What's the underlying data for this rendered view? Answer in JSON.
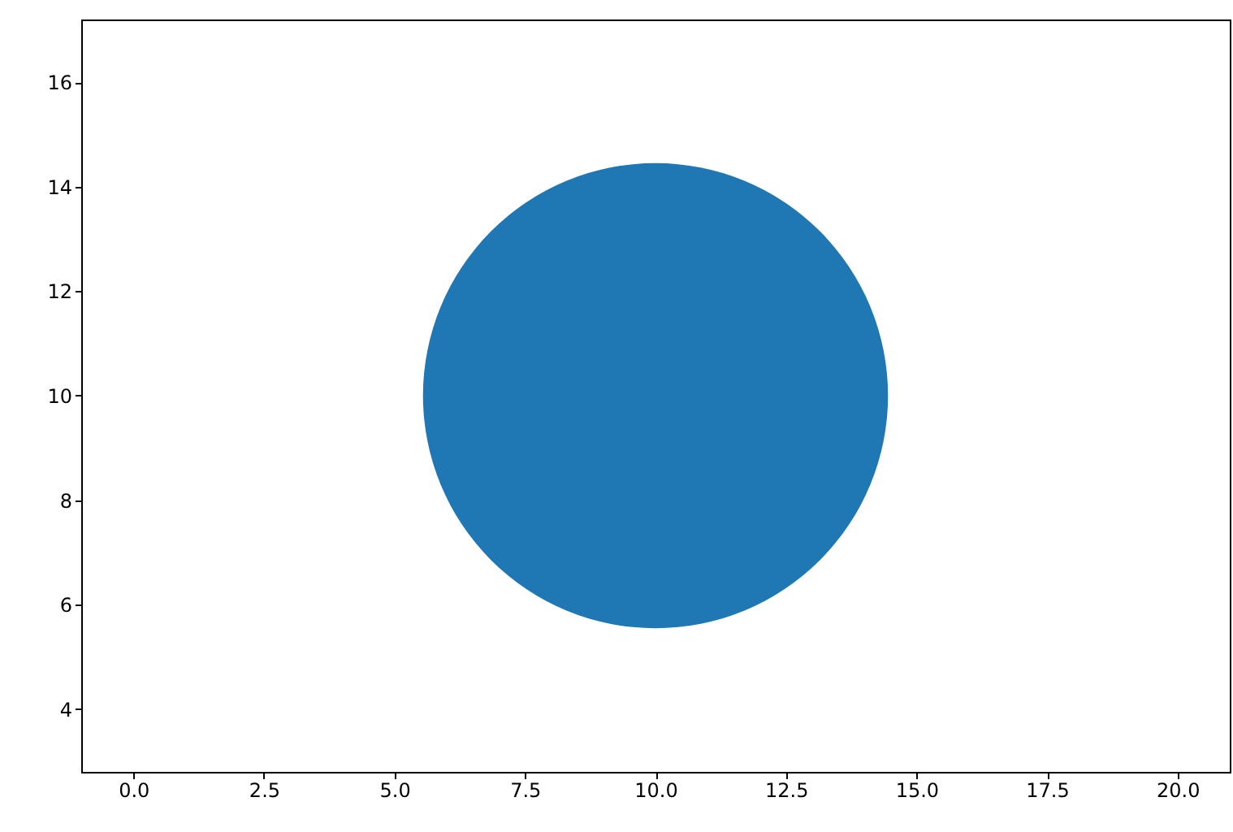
{
  "chart_data": {
    "type": "bubble",
    "x": [
      10
    ],
    "series": [
      {
        "color": "#1f77b4",
        "values": [
          10
        ],
        "sizes": [
          1
        ]
      }
    ],
    "xlim": [
      -1,
      21
    ],
    "xticks": [
      {
        "value": 0,
        "label": "0.0"
      },
      {
        "value": 2.5,
        "label": "2.5"
      },
      {
        "value": 5,
        "label": "5.0"
      },
      {
        "value": 7.5,
        "label": "7.5"
      },
      {
        "value": 10,
        "label": "10.0"
      },
      {
        "value": 12.5,
        "label": "12.5"
      },
      {
        "value": 15,
        "label": "15.0"
      },
      {
        "value": 17.5,
        "label": "17.5"
      },
      {
        "value": 20,
        "label": "20.0"
      }
    ],
    "ylim": [
      2.8,
      17.2
    ],
    "yticks": [
      4,
      6,
      8,
      10,
      12,
      14,
      16
    ],
    "grid": false
  }
}
